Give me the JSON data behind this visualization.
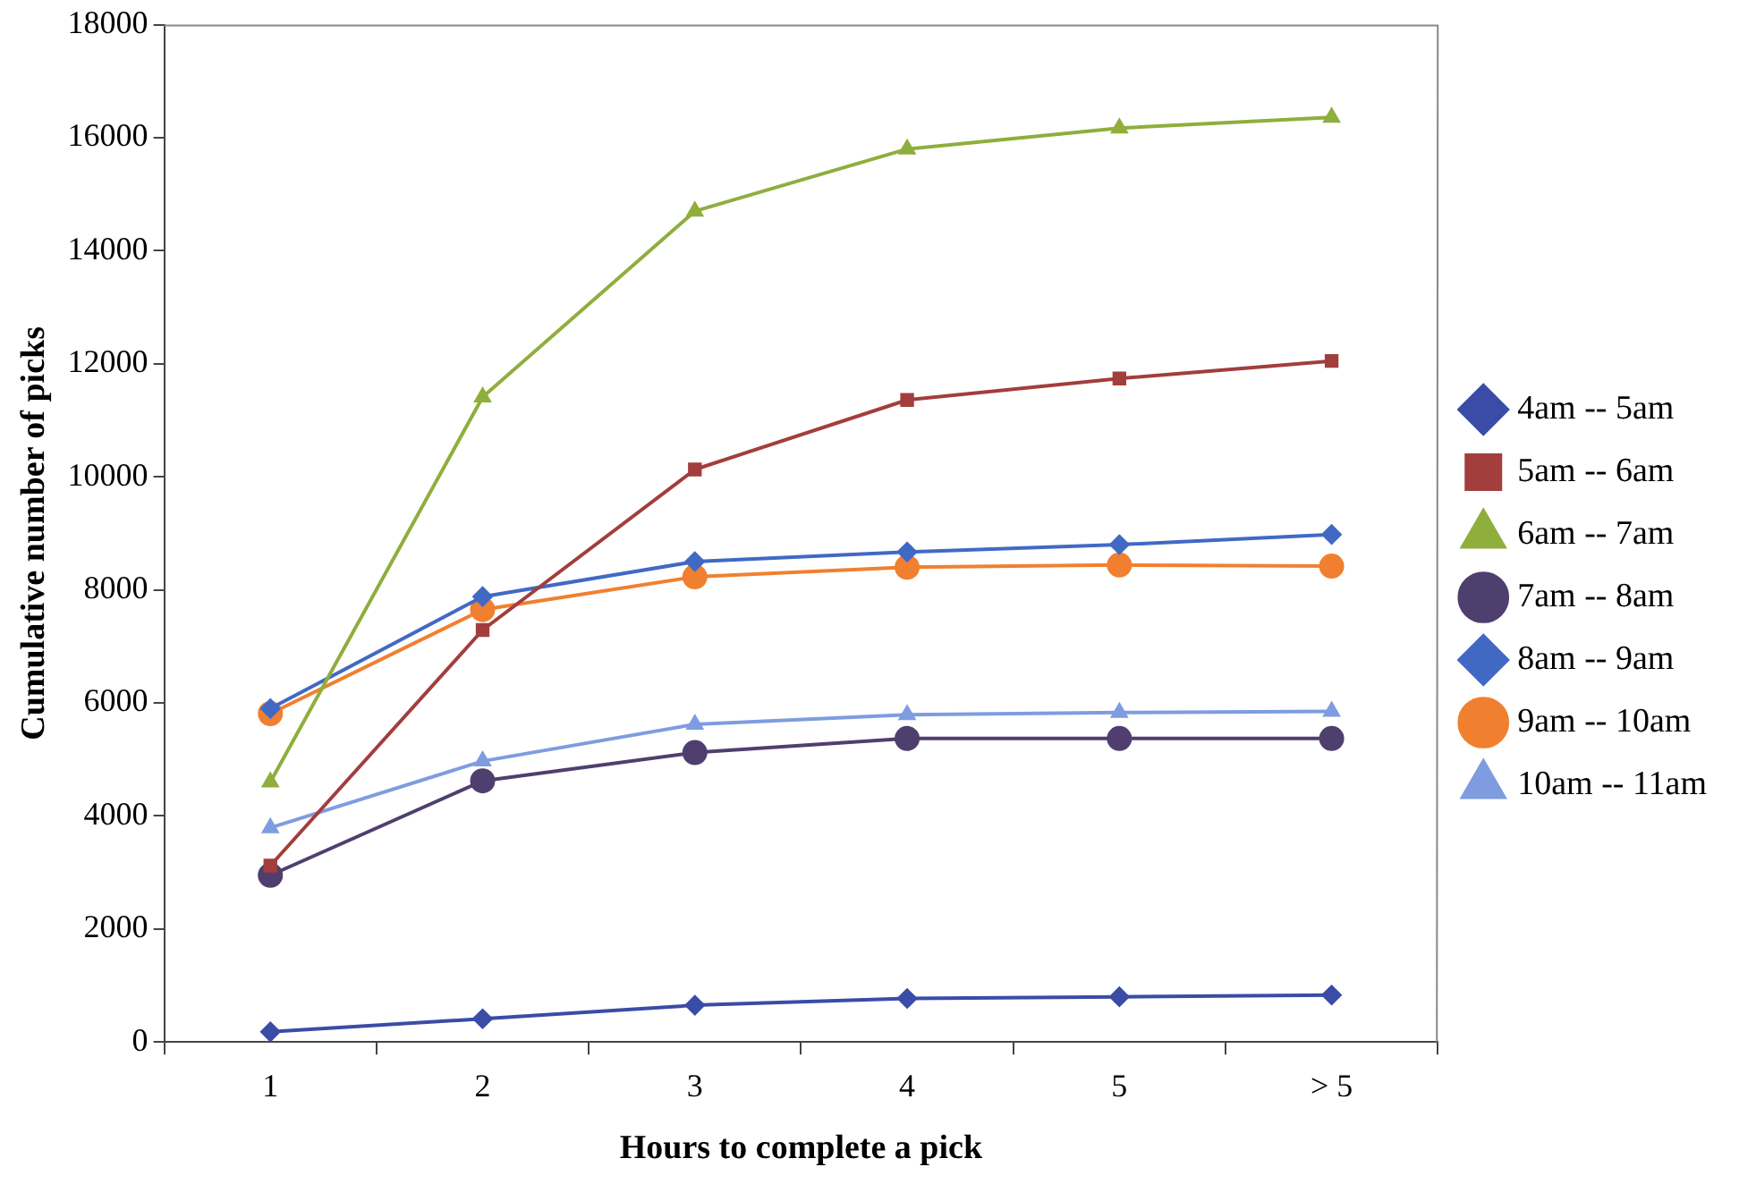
{
  "chart_data": {
    "type": "line",
    "xlabel": "Hours to complete a pick",
    "ylabel": "Cumulative number of picks",
    "categories": [
      "1",
      "2",
      "3",
      "4",
      "5",
      "> 5"
    ],
    "ylim": [
      0,
      18000
    ],
    "yticks": [
      0,
      2000,
      4000,
      6000,
      8000,
      10000,
      12000,
      14000,
      16000,
      18000
    ],
    "grid": false,
    "legend": "right",
    "line_style": "solid",
    "series": [
      {
        "name": "4am -- 5am",
        "color": "#3a4ca6",
        "marker": "diamond",
        "values": [
          180,
          410,
          650,
          770,
          800,
          830
        ]
      },
      {
        "name": "5am -- 6am",
        "color": "#a23e3c",
        "marker": "square",
        "values": [
          3120,
          7290,
          10130,
          11360,
          11740,
          12050
        ]
      },
      {
        "name": "6am -- 7am",
        "color": "#8fae3c",
        "marker": "triangle",
        "values": [
          4600,
          11410,
          14700,
          15800,
          16170,
          16360
        ]
      },
      {
        "name": "7am -- 8am",
        "color": "#4f3f6f",
        "marker": "circle",
        "values": [
          2950,
          4620,
          5120,
          5370,
          5370,
          5370
        ]
      },
      {
        "name": "8am -- 9am",
        "color": "#4169c4",
        "marker": "diamond",
        "values": [
          5900,
          7880,
          8500,
          8670,
          8800,
          8980
        ]
      },
      {
        "name": "9am -- 10am",
        "color": "#f08030",
        "marker": "circle",
        "values": [
          5810,
          7650,
          8230,
          8400,
          8440,
          8420
        ]
      },
      {
        "name": "10am -- 11am",
        "color": "#7f9ce0",
        "marker": "triangle",
        "values": [
          3790,
          4970,
          5620,
          5790,
          5830,
          5850
        ]
      }
    ]
  }
}
